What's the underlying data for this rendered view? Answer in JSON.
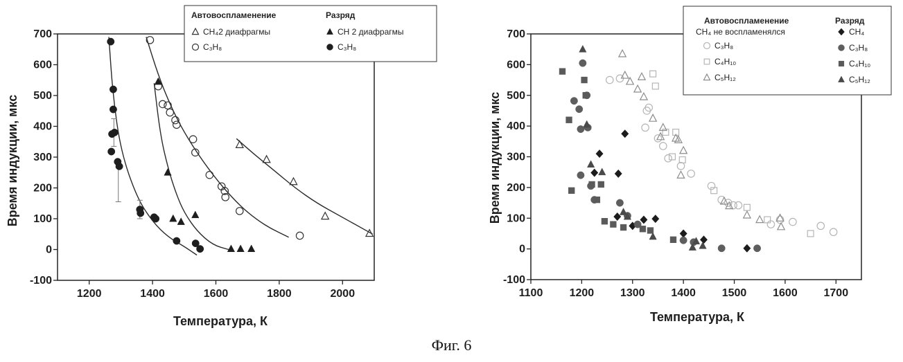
{
  "figure_caption": "Фиг. 6",
  "chart_data": [
    {
      "type": "scatter",
      "title": "",
      "xlabel": "Температура, К",
      "ylabel": "Время индукции, мкс",
      "xlim": [
        1100,
        2100
      ],
      "ylim": [
        -100,
        700
      ],
      "xticks": [
        1200,
        1400,
        1600,
        1800,
        2000
      ],
      "yticks": [
        -100,
        0,
        100,
        200,
        300,
        400,
        500,
        600,
        700
      ],
      "grid": false,
      "legend_position": "top-right",
      "legend_headers": [
        "Автовоспламенение",
        "Разряд"
      ],
      "series": [
        {
          "name": "CH₄2 диафрагмы",
          "group": "Автовоспламенение",
          "marker": "triangle-open",
          "points": [
            [
              1675,
              340
            ],
            [
              1760,
              292
            ],
            [
              1845,
              220
            ],
            [
              1945,
              108
            ],
            [
              2085,
              52
            ]
          ]
        },
        {
          "name": "C₃H₈",
          "group": "Автовоспламенение",
          "marker": "circle-open",
          "points": [
            [
              1392,
              680
            ],
            [
              1418,
              530
            ],
            [
              1432,
              472
            ],
            [
              1448,
              468
            ],
            [
              1455,
              445
            ],
            [
              1472,
              420
            ],
            [
              1476,
              405
            ],
            [
              1528,
              358
            ],
            [
              1535,
              315
            ],
            [
              1580,
              242
            ],
            [
              1618,
              205
            ],
            [
              1628,
              190
            ],
            [
              1630,
              170
            ],
            [
              1675,
              125
            ],
            [
              1865,
              45
            ]
          ]
        },
        {
          "name": "CH 2 диафрагмы",
          "group": "Разряд",
          "marker": "triangle-filled",
          "points": [
            [
              1418,
              545
            ],
            [
              1448,
              250
            ],
            [
              1465,
              100
            ],
            [
              1490,
              90
            ],
            [
              1535,
              112
            ],
            [
              1648,
              2
            ],
            [
              1678,
              2
            ],
            [
              1712,
              2
            ]
          ]
        },
        {
          "name": "C₃H₈",
          "group": "Разряд",
          "marker": "circle-filled",
          "points": [
            [
              1268,
              675
            ],
            [
              1276,
              520
            ],
            [
              1276,
              455
            ],
            [
              1280,
              380
            ],
            [
              1272,
              375
            ],
            [
              1270,
              318
            ],
            [
              1290,
              285
            ],
            [
              1295,
              270
            ],
            [
              1360,
              130
            ],
            [
              1362,
              118
            ],
            [
              1405,
              105
            ],
            [
              1410,
              100
            ],
            [
              1476,
              28
            ],
            [
              1536,
              20
            ],
            [
              1550,
              2
            ]
          ]
        }
      ],
      "error_bars": [
        [
          1278,
          380,
          45
        ],
        [
          1292,
          210,
          55
        ],
        [
          1360,
          130,
          30
        ]
      ],
      "fit_curves": [
        [
          [
            1262,
            690
          ],
          [
            1275,
            500
          ],
          [
            1300,
            320
          ],
          [
            1350,
            170
          ],
          [
            1400,
            90
          ],
          [
            1450,
            40
          ],
          [
            1500,
            10
          ],
          [
            1540,
            -18
          ]
        ],
        [
          [
            1405,
            540
          ],
          [
            1425,
            370
          ],
          [
            1450,
            260
          ],
          [
            1475,
            180
          ],
          [
            1500,
            120
          ],
          [
            1540,
            60
          ],
          [
            1590,
            15
          ],
          [
            1640,
            0
          ]
        ],
        [
          [
            1380,
            690
          ],
          [
            1420,
            560
          ],
          [
            1460,
            460
          ],
          [
            1500,
            380
          ],
          [
            1550,
            300
          ],
          [
            1600,
            230
          ],
          [
            1650,
            170
          ],
          [
            1700,
            120
          ],
          [
            1760,
            75
          ],
          [
            1830,
            40
          ]
        ],
        [
          [
            1665,
            360
          ],
          [
            1720,
            310
          ],
          [
            1780,
            260
          ],
          [
            1850,
            200
          ],
          [
            1920,
            150
          ],
          [
            1990,
            110
          ],
          [
            2060,
            70
          ],
          [
            2095,
            50
          ]
        ]
      ]
    },
    {
      "type": "scatter",
      "title": "",
      "xlabel": "Температура, К",
      "ylabel": "Время индукции, мкс",
      "xlim": [
        1100,
        1750
      ],
      "ylim": [
        -100,
        700
      ],
      "xticks": [
        1100,
        1200,
        1300,
        1400,
        1500,
        1600,
        1700
      ],
      "yticks": [
        -100,
        0,
        100,
        200,
        300,
        400,
        500,
        600,
        700
      ],
      "grid": false,
      "legend_position": "top-right",
      "legend_headers": [
        "Автовоспламенение",
        "Разряд"
      ],
      "legend_note": "CH₄ не воспламенялся",
      "series": [
        {
          "name": "C₃H₈",
          "group": "Автовоспламенение",
          "marker": "circle-open",
          "points": [
            [
              1255,
              550
            ],
            [
              1275,
              555
            ],
            [
              1325,
              395
            ],
            [
              1328,
              450
            ],
            [
              1332,
              460
            ],
            [
              1350,
              360
            ],
            [
              1360,
              335
            ],
            [
              1370,
              295
            ],
            [
              1395,
              270
            ],
            [
              1415,
              245
            ],
            [
              1455,
              205
            ],
            [
              1475,
              160
            ],
            [
              1488,
              150
            ],
            [
              1498,
              142
            ],
            [
              1508,
              142
            ],
            [
              1572,
              80
            ],
            [
              1590,
              95
            ],
            [
              1615,
              88
            ],
            [
              1670,
              75
            ],
            [
              1695,
              55
            ]
          ]
        },
        {
          "name": "C₄H₁₀",
          "group": "Автовоспламенение",
          "marker": "square-open",
          "points": [
            [
              1340,
              570
            ],
            [
              1345,
              530
            ],
            [
              1365,
              380
            ],
            [
              1378,
              300
            ],
            [
              1385,
              380
            ],
            [
              1398,
              290
            ],
            [
              1460,
              190
            ],
            [
              1525,
              135
            ],
            [
              1565,
              95
            ],
            [
              1650,
              50
            ]
          ]
        },
        {
          "name": "C₅H₁₂",
          "group": "Автовоспламенение",
          "marker": "triangle-open",
          "points": [
            [
              1280,
              635
            ],
            [
              1285,
              565
            ],
            [
              1295,
              545
            ],
            [
              1310,
              520
            ],
            [
              1318,
              560
            ],
            [
              1322,
              495
            ],
            [
              1340,
              425
            ],
            [
              1355,
              365
            ],
            [
              1360,
              395
            ],
            [
              1385,
              360
            ],
            [
              1390,
              355
            ],
            [
              1395,
              240
            ],
            [
              1400,
              320
            ],
            [
              1480,
              155
            ],
            [
              1490,
              140
            ],
            [
              1525,
              110
            ],
            [
              1550,
              95
            ],
            [
              1590,
              100
            ],
            [
              1592,
              72
            ]
          ]
        },
        {
          "name": "CH₄",
          "group": "Разряд",
          "marker": "diamond-filled",
          "points": [
            [
              1225,
              248
            ],
            [
              1235,
              310
            ],
            [
              1272,
              245
            ],
            [
              1285,
              375
            ],
            [
              1270,
              105
            ],
            [
              1300,
              75
            ],
            [
              1322,
              95
            ],
            [
              1345,
              98
            ],
            [
              1400,
              50
            ],
            [
              1440,
              30
            ],
            [
              1525,
              2
            ]
          ]
        },
        {
          "name": "C₃H₈",
          "group": "Разряд",
          "marker": "circle-filled",
          "points": [
            [
              1185,
              482
            ],
            [
              1195,
              455
            ],
            [
              1202,
              605
            ],
            [
              1198,
              390
            ],
            [
              1210,
              500
            ],
            [
              1212,
              395
            ],
            [
              1198,
              240
            ],
            [
              1218,
              205
            ],
            [
              1225,
              160
            ],
            [
              1275,
              150
            ],
            [
              1290,
              108
            ],
            [
              1310,
              80
            ],
            [
              1400,
              28
            ],
            [
              1420,
              22
            ],
            [
              1475,
              2
            ],
            [
              1545,
              2
            ]
          ]
        },
        {
          "name": "C₄H₁₀",
          "group": "Разряд",
          "marker": "square-filled",
          "points": [
            [
              1162,
              578
            ],
            [
              1175,
              420
            ],
            [
              1180,
              190
            ],
            [
              1205,
              550
            ],
            [
              1208,
              500
            ],
            [
              1220,
              210
            ],
            [
              1230,
              160
            ],
            [
              1238,
              210
            ],
            [
              1245,
              90
            ],
            [
              1262,
              80
            ],
            [
              1282,
              70
            ],
            [
              1320,
              65
            ],
            [
              1335,
              60
            ],
            [
              1380,
              30
            ]
          ]
        },
        {
          "name": "C₅H₁₂",
          "group": "Разряд",
          "marker": "triangle-filled",
          "points": [
            [
              1202,
              650
            ],
            [
              1210,
              405
            ],
            [
              1218,
              275
            ],
            [
              1240,
              250
            ],
            [
              1282,
              120
            ],
            [
              1290,
              105
            ],
            [
              1340,
              40
            ],
            [
              1418,
              5
            ],
            [
              1425,
              25
            ],
            [
              1438,
              10
            ]
          ]
        }
      ]
    }
  ]
}
